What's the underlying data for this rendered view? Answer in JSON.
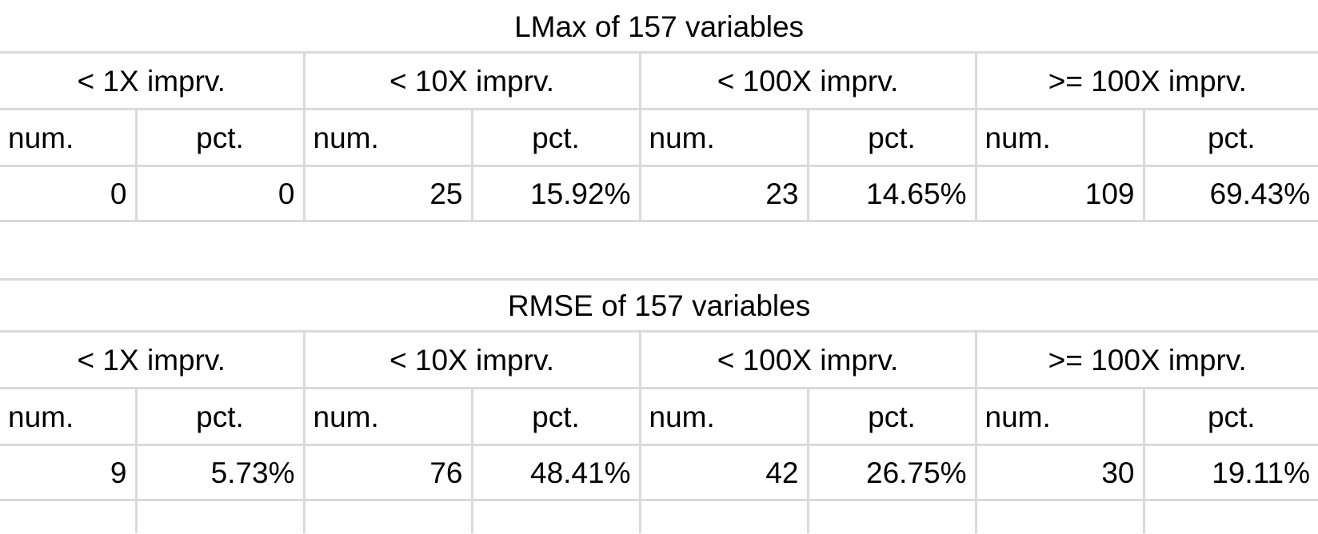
{
  "tables": [
    {
      "title": "LMax of 157 variables",
      "groups": [
        "< 1X imprv.",
        "< 10X imprv.",
        "< 100X imprv.",
        ">= 100X imprv."
      ],
      "subheaders": [
        "num.",
        "pct.",
        "num.",
        "pct.",
        "num.",
        "pct.",
        "num.",
        "pct."
      ],
      "values": [
        "0",
        "0",
        "25",
        "15.92%",
        "23",
        "14.65%",
        "109",
        "69.43%"
      ]
    },
    {
      "title": "RMSE of 157 variables",
      "groups": [
        "< 1X imprv.",
        "< 10X imprv.",
        "< 100X imprv.",
        ">= 100X imprv."
      ],
      "subheaders": [
        "num.",
        "pct.",
        "num.",
        "pct.",
        "num.",
        "pct.",
        "num.",
        "pct."
      ],
      "values": [
        "9",
        "5.73%",
        "76",
        "48.41%",
        "42",
        "26.75%",
        "30",
        "19.11%"
      ]
    }
  ]
}
